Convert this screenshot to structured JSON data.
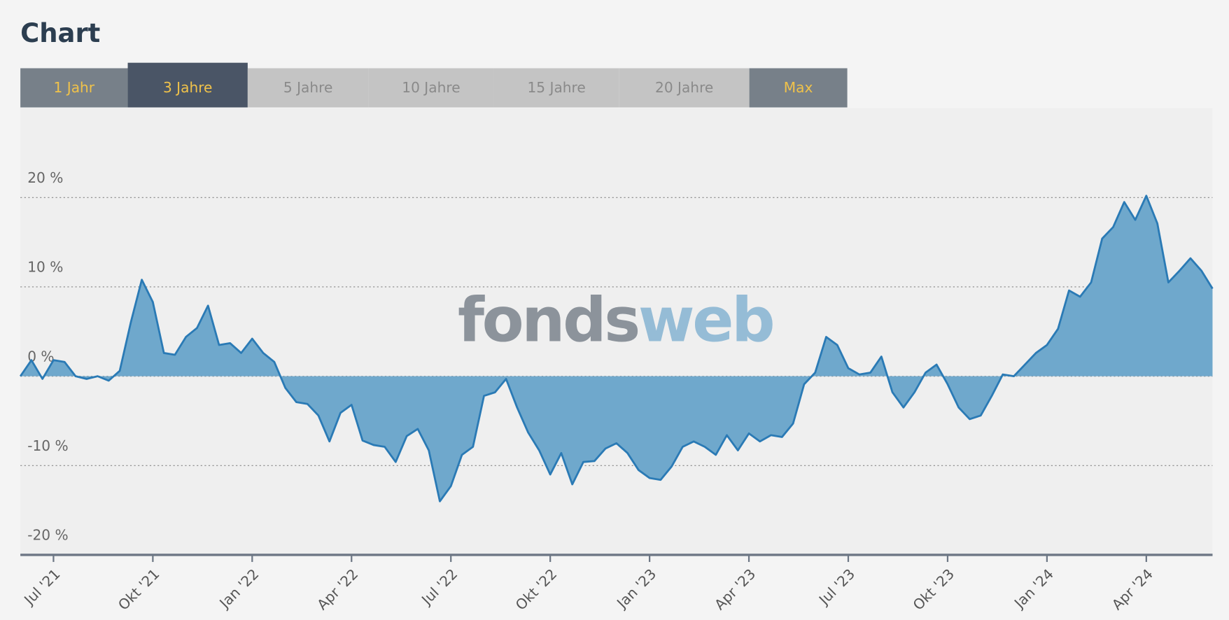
{
  "title": "Chart",
  "tabs": [
    {
      "label": "1 Jahr",
      "state": "enabled"
    },
    {
      "label": "3 Jahre",
      "state": "active"
    },
    {
      "label": "5 Jahre",
      "state": "disabled"
    },
    {
      "label": "10 Jahre",
      "state": "disabled"
    },
    {
      "label": "15 Jahre",
      "state": "disabled"
    },
    {
      "label": "20 Jahre",
      "state": "disabled"
    },
    {
      "label": "Max",
      "state": "enabled"
    }
  ],
  "watermark": {
    "dark": "fonds",
    "light": "web"
  },
  "chart_data": {
    "type": "area",
    "color": "#2a7ab5",
    "fill": "#6fa8cc",
    "grid": true,
    "ylim": [
      -20,
      30
    ],
    "yticks": [
      {
        "value": -20,
        "label": "-20 %"
      },
      {
        "value": -10,
        "label": "-10 %"
      },
      {
        "value": 0,
        "label": "0 %"
      },
      {
        "value": 10,
        "label": "10 %"
      },
      {
        "value": 20,
        "label": "20 %"
      }
    ],
    "categories": [
      null,
      null,
      null,
      "Jul '21",
      null,
      null,
      null,
      null,
      null,
      null,
      null,
      null,
      "Okt '21",
      null,
      null,
      null,
      null,
      null,
      null,
      null,
      null,
      "Jan '22",
      null,
      null,
      null,
      null,
      null,
      null,
      null,
      null,
      "Apr '22",
      null,
      null,
      null,
      null,
      null,
      null,
      null,
      null,
      "Jul '22",
      null,
      null,
      null,
      null,
      null,
      null,
      null,
      null,
      "Okt '22",
      null,
      null,
      null,
      null,
      null,
      null,
      null,
      null,
      "Jan '23",
      null,
      null,
      null,
      null,
      null,
      null,
      null,
      null,
      "Apr '23",
      null,
      null,
      null,
      null,
      null,
      null,
      null,
      null,
      "Jul '23",
      null,
      null,
      null,
      null,
      null,
      null,
      null,
      null,
      "Okt '23",
      null,
      null,
      null,
      null,
      null,
      null,
      null,
      null,
      "Jan '24",
      null,
      null,
      null,
      null,
      null,
      null,
      null,
      null,
      "Apr '24",
      null,
      null,
      null,
      null,
      null,
      null
    ],
    "values": [
      0,
      1.8,
      -0.3,
      1.8,
      1.6,
      0,
      -0.3,
      0,
      -0.5,
      0.6,
      6,
      10.8,
      8.3,
      2.6,
      2.4,
      4.4,
      5.4,
      7.9,
      3.5,
      3.7,
      2.6,
      4.2,
      2.6,
      1.6,
      -1.3,
      -2.9,
      -3.1,
      -4.4,
      -7.3,
      -4.1,
      -3.2,
      -7.2,
      -7.7,
      -7.9,
      -9.6,
      -6.7,
      -5.9,
      -8.3,
      -14,
      -12.3,
      -8.8,
      -7.9,
      -2.2,
      -1.8,
      -0.3,
      -3.5,
      -6.3,
      -8.3,
      -11,
      -8.6,
      -12.1,
      -9.6,
      -9.5,
      -8.1,
      -7.5,
      -8.6,
      -10.5,
      -11.4,
      -11.6,
      -10.1,
      -7.9,
      -7.3,
      -7.9,
      -8.8,
      -6.6,
      -8.3,
      -6.4,
      -7.3,
      -6.6,
      -6.8,
      -5.3,
      -0.9,
      0.4,
      4.4,
      3.5,
      0.9,
      0.2,
      0.4,
      2.2,
      -1.8,
      -3.5,
      -1.8,
      0.4,
      1.3,
      -0.9,
      -3.5,
      -4.8,
      -4.4,
      -2.2,
      0.2,
      0,
      1.3,
      2.6,
      3.5,
      5.3,
      9.6,
      8.9,
      10.5,
      15.4,
      16.7,
      19.5,
      17.5,
      20.2,
      17.1,
      10.5,
      11.8,
      13.2,
      11.8,
      9.8
    ]
  }
}
